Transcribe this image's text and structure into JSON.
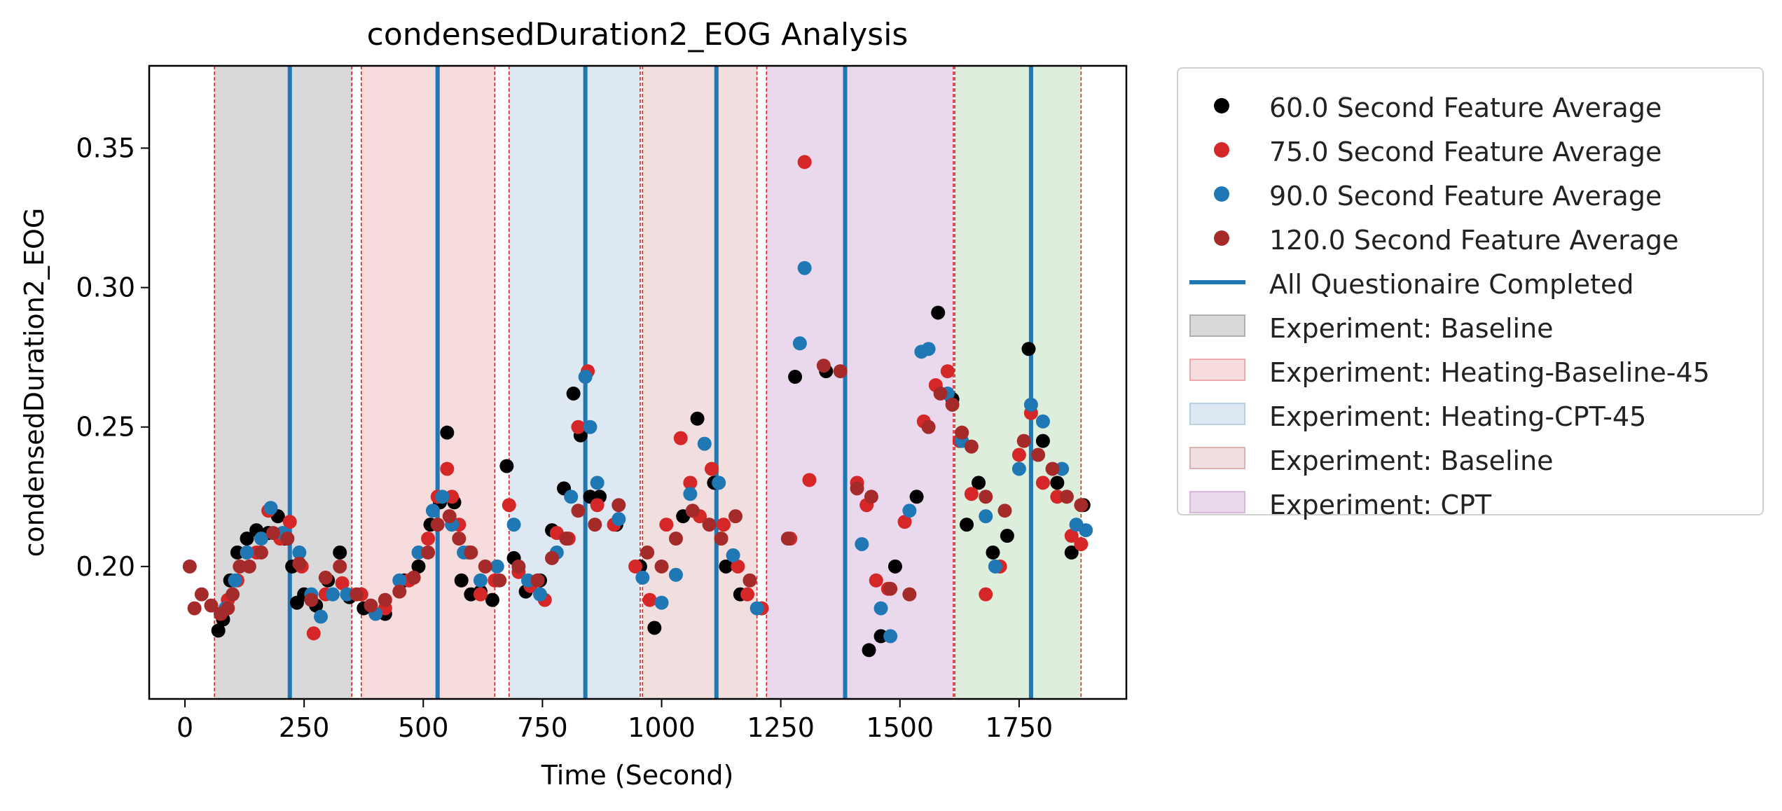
{
  "chart_data": {
    "type": "scatter",
    "title": "condensedDuration2_EOG Analysis",
    "xlabel": "Time (Second)",
    "ylabel": "condensedDuration2_EOG",
    "xlim": [
      -75,
      1975
    ],
    "ylim": [
      0.1525,
      0.3795
    ],
    "xticks": [
      0,
      250,
      500,
      750,
      1000,
      1250,
      1500,
      1750
    ],
    "yticks": [
      0.2,
      0.25,
      0.3,
      0.35
    ],
    "xtick_labels": [
      "0",
      "250",
      "500",
      "750",
      "1000",
      "1250",
      "1500",
      "1750"
    ],
    "ytick_labels": [
      "0.20",
      "0.25",
      "0.30",
      "0.35"
    ],
    "grid": false,
    "legend_position": "outside-right",
    "series": [
      {
        "name": "60.0 Second Feature Average",
        "color": "#000000",
        "x": [
          70,
          80,
          95,
          110,
          130,
          150,
          175,
          195,
          210,
          225,
          235,
          250,
          275,
          300,
          325,
          345,
          375,
          420,
          460,
          490,
          515,
          535,
          550,
          565,
          580,
          600,
          620,
          645,
          675,
          690,
          715,
          745,
          770,
          795,
          815,
          830,
          850,
          870,
          905,
          955,
          985,
          1045,
          1075,
          1110,
          1135,
          1165,
          1210,
          1280,
          1345,
          1435,
          1460,
          1490,
          1535,
          1580,
          1610,
          1640,
          1665,
          1695,
          1725,
          1770,
          1800,
          1830,
          1860,
          1885
        ],
        "y": [
          0.177,
          0.181,
          0.195,
          0.205,
          0.21,
          0.213,
          0.212,
          0.218,
          0.21,
          0.2,
          0.187,
          0.19,
          0.186,
          0.195,
          0.205,
          0.189,
          0.185,
          0.183,
          0.195,
          0.2,
          0.215,
          0.223,
          0.248,
          0.223,
          0.195,
          0.19,
          0.191,
          0.188,
          0.236,
          0.203,
          0.191,
          0.195,
          0.213,
          0.228,
          0.262,
          0.247,
          0.225,
          0.225,
          0.215,
          0.2,
          0.178,
          0.218,
          0.253,
          0.23,
          0.2,
          0.19,
          0.185,
          0.268,
          0.27,
          0.17,
          0.175,
          0.2,
          0.225,
          0.291,
          0.26,
          0.215,
          0.23,
          0.205,
          0.211,
          0.278,
          0.245,
          0.23,
          0.205,
          0.222
        ]
      },
      {
        "name": "75.0 Second Feature Average",
        "color": "#d62728",
        "x": [
          75,
          90,
          110,
          130,
          150,
          175,
          200,
          220,
          245,
          270,
          295,
          330,
          370,
          420,
          470,
          510,
          530,
          550,
          560,
          575,
          595,
          620,
          650,
          680,
          700,
          725,
          755,
          780,
          805,
          825,
          845,
          865,
          900,
          945,
          975,
          1010,
          1040,
          1060,
          1080,
          1105,
          1130,
          1160,
          1180,
          1210,
          1270,
          1300,
          1310,
          1410,
          1430,
          1450,
          1475,
          1510,
          1550,
          1575,
          1600,
          1625,
          1650,
          1680,
          1710,
          1750,
          1775,
          1800,
          1830,
          1860,
          1880
        ],
        "y": [
          0.183,
          0.188,
          0.195,
          0.205,
          0.205,
          0.22,
          0.21,
          0.216,
          0.2,
          0.176,
          0.19,
          0.194,
          0.19,
          0.185,
          0.195,
          0.21,
          0.225,
          0.235,
          0.225,
          0.215,
          0.205,
          0.19,
          0.195,
          0.222,
          0.198,
          0.193,
          0.188,
          0.212,
          0.21,
          0.25,
          0.27,
          0.222,
          0.215,
          0.2,
          0.188,
          0.215,
          0.246,
          0.23,
          0.218,
          0.235,
          0.215,
          0.2,
          0.19,
          0.185,
          0.21,
          0.345,
          0.231,
          0.23,
          0.222,
          0.195,
          0.192,
          0.216,
          0.252,
          0.265,
          0.27,
          0.245,
          0.226,
          0.19,
          0.2,
          0.24,
          0.255,
          0.23,
          0.225,
          0.211,
          0.208
        ]
      },
      {
        "name": "90.0 Second Feature Average",
        "color": "#1f77b4",
        "x": [
          85,
          105,
          130,
          160,
          180,
          205,
          240,
          265,
          285,
          310,
          340,
          400,
          450,
          490,
          520,
          540,
          560,
          585,
          620,
          655,
          690,
          720,
          745,
          780,
          810,
          840,
          850,
          865,
          910,
          960,
          1000,
          1030,
          1060,
          1090,
          1120,
          1150,
          1200,
          1290,
          1300,
          1420,
          1460,
          1480,
          1520,
          1545,
          1560,
          1600,
          1630,
          1680,
          1700,
          1750,
          1775,
          1800,
          1840,
          1870,
          1890
        ],
        "y": [
          0.185,
          0.195,
          0.205,
          0.21,
          0.221,
          0.212,
          0.205,
          0.19,
          0.182,
          0.19,
          0.19,
          0.183,
          0.195,
          0.205,
          0.22,
          0.225,
          0.215,
          0.205,
          0.195,
          0.2,
          0.215,
          0.195,
          0.19,
          0.205,
          0.225,
          0.268,
          0.25,
          0.23,
          0.217,
          0.196,
          0.187,
          0.197,
          0.226,
          0.244,
          0.23,
          0.204,
          0.185,
          0.28,
          0.307,
          0.208,
          0.185,
          0.175,
          0.22,
          0.277,
          0.278,
          0.262,
          0.245,
          0.218,
          0.2,
          0.235,
          0.258,
          0.252,
          0.235,
          0.215,
          0.213
        ]
      },
      {
        "name": "120.0 Second Feature Average",
        "color": "#a52a2a",
        "x": [
          10,
          20,
          35,
          55,
          75,
          90,
          100,
          115,
          135,
          160,
          185,
          215,
          240,
          265,
          295,
          325,
          360,
          390,
          420,
          450,
          480,
          510,
          530,
          555,
          575,
          600,
          630,
          660,
          700,
          740,
          770,
          800,
          825,
          860,
          910,
          970,
          1000,
          1030,
          1065,
          1100,
          1125,
          1155,
          1185,
          1265,
          1340,
          1375,
          1410,
          1440,
          1480,
          1520,
          1560,
          1585,
          1610,
          1630,
          1650,
          1680,
          1720,
          1760,
          1790,
          1820,
          1850,
          1880
        ],
        "y": [
          0.2,
          0.185,
          0.19,
          0.186,
          0.183,
          0.185,
          0.19,
          0.2,
          0.2,
          0.205,
          0.212,
          0.21,
          0.201,
          0.188,
          0.196,
          0.2,
          0.19,
          0.186,
          0.188,
          0.191,
          0.196,
          0.205,
          0.215,
          0.218,
          0.21,
          0.205,
          0.2,
          0.195,
          0.2,
          0.195,
          0.203,
          0.21,
          0.22,
          0.215,
          0.222,
          0.205,
          0.2,
          0.21,
          0.22,
          0.215,
          0.21,
          0.218,
          0.195,
          0.21,
          0.272,
          0.27,
          0.228,
          0.225,
          0.192,
          0.19,
          0.25,
          0.262,
          0.258,
          0.248,
          0.243,
          0.225,
          0.22,
          0.245,
          0.24,
          0.235,
          0.225,
          0.222
        ]
      }
    ],
    "vlines": {
      "name": "All Questionaire Completed",
      "color": "#1f77b4",
      "x": [
        220,
        530,
        840,
        1115,
        1385,
        1775
      ]
    },
    "spans": [
      {
        "label": "Experiment: Baseline",
        "x0": 62,
        "x1": 350,
        "color": "#d9d9d9",
        "edge": "#b0b0b0"
      },
      {
        "label": "Experiment: Heating-Baseline-45",
        "x0": 370,
        "x1": 650,
        "color": "#f7dcde",
        "edge": "#f0a8ae"
      },
      {
        "label": "Experiment: Heating-CPT-45",
        "x0": 680,
        "x1": 955,
        "color": "#dde8f2",
        "edge": "#b8cfe6"
      },
      {
        "label": "Experiment: Baseline",
        "x0": 960,
        "x1": 1200,
        "color": "#f1dede",
        "edge": "#dcb2b2"
      },
      {
        "label": "Experiment: CPT",
        "x0": 1220,
        "x1": 1612,
        "color": "#ead9ec",
        "edge": "#d7b7dc"
      },
      {
        "label": "",
        "x0": 1615,
        "x1": 1880,
        "color": "#ddefdc",
        "edge": "#b8dcb6"
      }
    ],
    "boundary_lines": [
      62,
      350,
      370,
      650,
      680,
      955,
      960,
      1200,
      1220,
      1612,
      1615,
      1880
    ],
    "boundary_color": "#d62728"
  },
  "legend": {
    "items": [
      {
        "kind": "marker",
        "label": "60.0 Second Feature Average",
        "color": "#000000"
      },
      {
        "kind": "marker",
        "label": "75.0 Second Feature Average",
        "color": "#d62728"
      },
      {
        "kind": "marker",
        "label": "90.0 Second Feature Average",
        "color": "#1f77b4"
      },
      {
        "kind": "marker",
        "label": "120.0 Second Feature Average",
        "color": "#a52a2a"
      },
      {
        "kind": "line",
        "label": "All Questionaire Completed",
        "color": "#1f77b4"
      },
      {
        "kind": "patch",
        "label": "Experiment: Baseline",
        "color": "#d9d9d9",
        "edge": "#b0b0b0"
      },
      {
        "kind": "patch",
        "label": "Experiment: Heating-Baseline-45",
        "color": "#f7dcde",
        "edge": "#f0a8ae"
      },
      {
        "kind": "patch",
        "label": "Experiment: Heating-CPT-45",
        "color": "#dde8f2",
        "edge": "#b8cfe6"
      },
      {
        "kind": "patch",
        "label": "Experiment: Baseline",
        "color": "#f1dede",
        "edge": "#dcb2b2"
      },
      {
        "kind": "patch",
        "label": "Experiment: CPT",
        "color": "#ead9ec",
        "edge": "#d7b7dc"
      }
    ]
  }
}
